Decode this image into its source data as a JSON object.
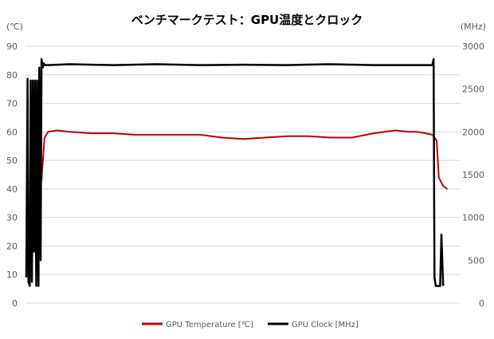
{
  "chart_data": {
    "type": "line",
    "title": "ベンチマークテスト：GPU温度とクロック",
    "y_left_unit": "(℃)",
    "y_right_unit": "(MHz)",
    "ylim_left": [
      0,
      90
    ],
    "ylim_right": [
      0,
      3000
    ],
    "yticks_left": [
      "0",
      "10",
      "20",
      "30",
      "40",
      "50",
      "60",
      "70",
      "80",
      "90"
    ],
    "yticks_right": [
      "0",
      "500",
      "1000",
      "1500",
      "2000",
      "2500",
      "3000"
    ],
    "grid": true,
    "legend_position": "bottom",
    "x_range": [
      0,
      100
    ],
    "series": [
      {
        "name": "GPU Temperature [℃]",
        "axis": "left",
        "color": "#c00000",
        "x": [
          0,
          2.5,
          3.5,
          4.2,
          5,
          7,
          10,
          15,
          20,
          25,
          30,
          35,
          40,
          45,
          50,
          55,
          60,
          65,
          70,
          75,
          80,
          85,
          88,
          90,
          92,
          93.5,
          94,
          94.5,
          95,
          96,
          97
        ],
        "values": [
          42,
          42.5,
          43,
          58,
          60,
          60.5,
          60,
          59.5,
          59.5,
          59,
          59,
          59,
          59,
          58,
          57.5,
          58,
          58.5,
          58.5,
          58,
          58,
          59.5,
          60.5,
          60,
          60,
          59.5,
          59,
          58,
          57,
          44,
          41,
          40
        ]
      },
      {
        "name": "GPU Clock [MHz]",
        "axis": "right",
        "color": "#000000",
        "x": [
          0,
          0.3,
          0.5,
          0.8,
          1.0,
          1.3,
          1.5,
          1.8,
          2.0,
          2.3,
          2.5,
          2.8,
          3.0,
          3.3,
          3.5,
          3.8,
          4.0,
          4.3,
          5,
          10,
          20,
          30,
          40,
          50,
          60,
          70,
          80,
          90,
          93.5,
          93.8,
          94.0,
          94.3,
          94.8,
          95.3,
          95.6,
          96.0
        ],
        "values": [
          300,
          2620,
          250,
          200,
          2600,
          250,
          2600,
          600,
          2600,
          200,
          2600,
          200,
          2750,
          500,
          2850,
          2750,
          2800,
          2780,
          2780,
          2790,
          2780,
          2790,
          2780,
          2785,
          2780,
          2790,
          2780,
          2780,
          2780,
          2850,
          300,
          200,
          200,
          200,
          800,
          200
        ]
      }
    ]
  }
}
